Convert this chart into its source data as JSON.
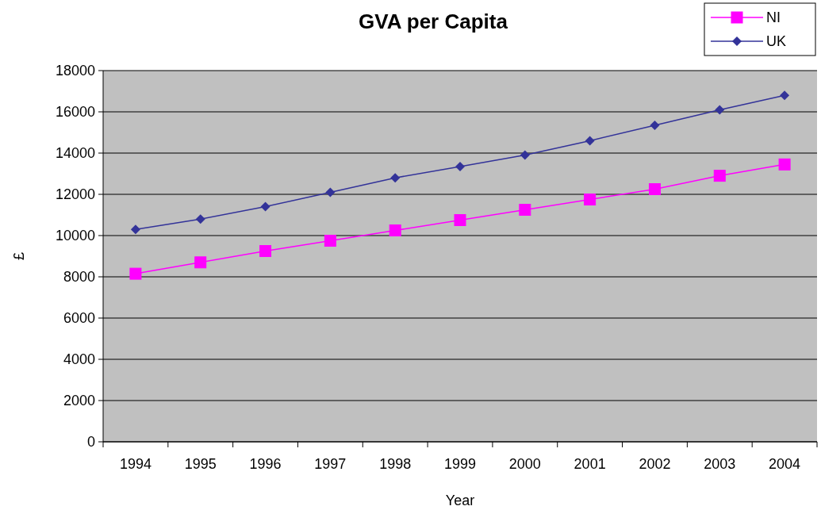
{
  "chart_data": {
    "type": "line",
    "title": "GVA per Capita",
    "xlabel": "Year",
    "ylabel": "£",
    "categories": [
      "1994",
      "1995",
      "1996",
      "1997",
      "1998",
      "1999",
      "2000",
      "2001",
      "2002",
      "2003",
      "2004"
    ],
    "series": [
      {
        "name": "NI",
        "color": "#ff00ff",
        "marker": "square",
        "values": [
          8150,
          8700,
          9250,
          9750,
          10250,
          10750,
          11250,
          11750,
          12250,
          12900,
          13450
        ]
      },
      {
        "name": "UK",
        "color": "#333399",
        "marker": "diamond",
        "values": [
          10300,
          10800,
          11400,
          12100,
          12800,
          13350,
          13900,
          14600,
          15350,
          16100,
          16800
        ]
      }
    ],
    "ylim": [
      0,
      18000
    ],
    "yticks": [
      0,
      2000,
      4000,
      6000,
      8000,
      10000,
      12000,
      14000,
      16000,
      18000
    ],
    "grid": "y",
    "legend": "top right"
  }
}
